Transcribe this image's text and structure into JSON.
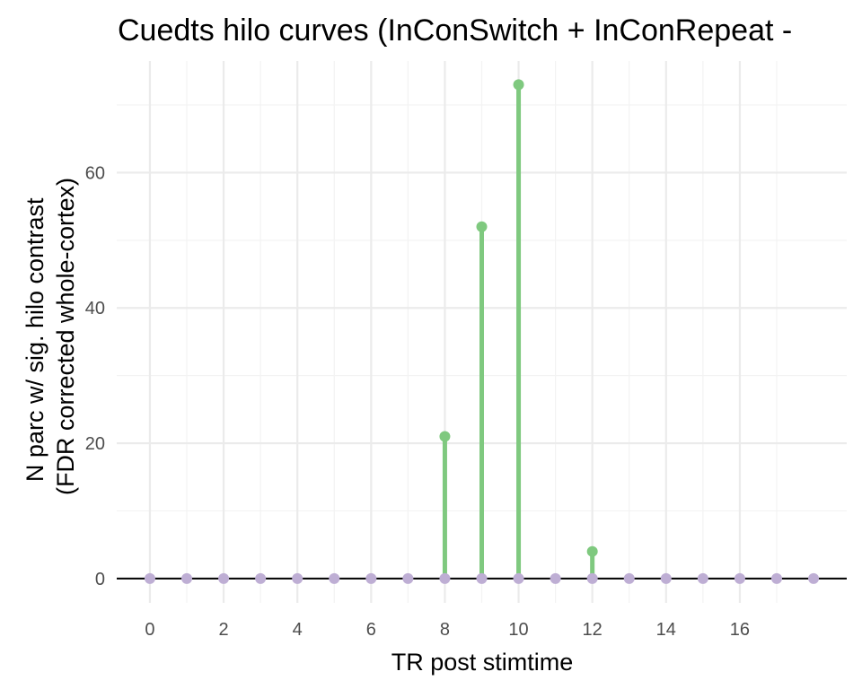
{
  "chart_data": {
    "type": "lollipop",
    "title": "Cuedts hilo curves (InConSwitch + InConRepeat -",
    "xlabel": "TR post stimtime",
    "ylabel_lines": [
      "N parc w/ sig. hilo contrast",
      "(FDR corrected whole-cortex)"
    ],
    "x": [
      0,
      1,
      2,
      3,
      4,
      5,
      6,
      7,
      8,
      9,
      10,
      11,
      12,
      13,
      14,
      15,
      16,
      17,
      18
    ],
    "values": [
      0,
      0,
      0,
      0,
      0,
      0,
      0,
      0,
      21,
      52,
      73,
      0,
      4,
      0,
      0,
      0,
      0,
      0,
      0
    ],
    "xticks": [
      0,
      2,
      4,
      6,
      8,
      10,
      12,
      14,
      16
    ],
    "yticks": [
      0,
      20,
      40,
      60
    ],
    "xlim": [
      -0.9,
      18.9
    ],
    "ylim": [
      -3.6,
      76.5
    ],
    "grid": true,
    "reference_line_y": 0,
    "colors": {
      "significant": "#7fc97f",
      "zero": "#beaed4",
      "zero_line": "#000000"
    }
  }
}
